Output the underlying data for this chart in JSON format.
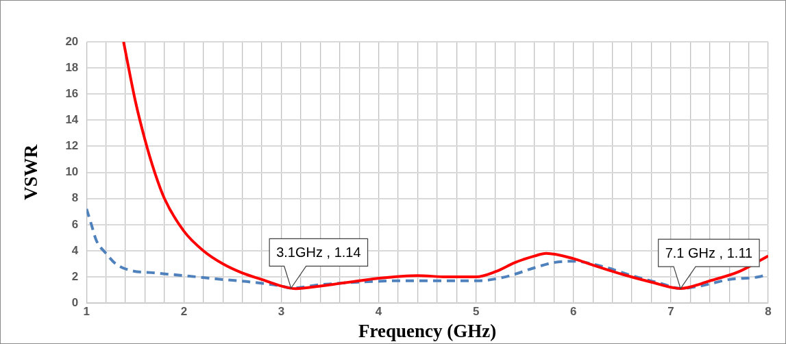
{
  "chart_data": {
    "type": "line",
    "xlabel": "Frequency (GHz)",
    "ylabel": "VSWR",
    "series": [
      {
        "color": "#ff0000",
        "line_style": "solid",
        "x": [
          1.38,
          1.5,
          1.6,
          1.7,
          1.8,
          2.0,
          2.2,
          2.4,
          2.6,
          2.8,
          3.0,
          3.15,
          3.4,
          3.6,
          3.8,
          4.0,
          4.4,
          4.7,
          5.0,
          5.2,
          5.4,
          5.6,
          5.72,
          6.0,
          6.2,
          6.5,
          6.8,
          7.1,
          7.4,
          7.7,
          8.0
        ],
        "values": [
          20,
          15.5,
          12.5,
          10,
          8,
          5.5,
          4,
          3,
          2.3,
          1.8,
          1.3,
          1.1,
          1.3,
          1.5,
          1.7,
          1.9,
          2.1,
          2.0,
          2.0,
          2.4,
          3.1,
          3.6,
          3.8,
          3.4,
          2.9,
          2.2,
          1.6,
          1.11,
          1.7,
          2.4,
          3.6
        ]
      },
      {
        "color": "#4f81bd",
        "line_style": "dashed",
        "x": [
          1.0,
          1.05,
          1.1,
          1.2,
          1.3,
          1.45,
          1.7,
          2.0,
          2.4,
          2.7,
          3.0,
          3.1,
          3.4,
          3.8,
          4.2,
          4.6,
          5.0,
          5.3,
          5.6,
          5.8,
          6.0,
          6.3,
          6.6,
          6.9,
          7.1,
          7.3,
          7.6,
          7.9,
          8.0
        ],
        "values": [
          7.2,
          6,
          4.8,
          3.8,
          3.0,
          2.5,
          2.3,
          2.1,
          1.8,
          1.6,
          1.3,
          1.14,
          1.4,
          1.6,
          1.7,
          1.7,
          1.7,
          2.0,
          2.7,
          3.1,
          3.2,
          2.8,
          2.1,
          1.5,
          1.11,
          1.3,
          1.8,
          2.0,
          2.2
        ]
      }
    ],
    "xlim": [
      1,
      8
    ],
    "xticks": [
      1,
      {
        "value": 1.2,
        "label": null
      },
      {
        "value": 1.4,
        "label": null
      },
      {
        "value": 1.6,
        "label": null
      },
      {
        "value": 1.8,
        "label": null
      },
      2,
      {
        "value": 2.2,
        "label": null
      },
      {
        "value": 2.4,
        "label": null
      },
      {
        "value": 2.6,
        "label": null
      },
      {
        "value": 2.8,
        "label": null
      },
      3,
      {
        "value": 3.2,
        "label": null
      },
      {
        "value": 3.4,
        "label": null
      },
      {
        "value": 3.6,
        "label": null
      },
      {
        "value": 3.8,
        "label": null
      },
      4,
      {
        "value": 4.2,
        "label": null
      },
      {
        "value": 4.4,
        "label": null
      },
      {
        "value": 4.6,
        "label": null
      },
      {
        "value": 4.8,
        "label": null
      },
      5,
      {
        "value": 5.2,
        "label": null
      },
      {
        "value": 5.4,
        "label": null
      },
      {
        "value": 5.6,
        "label": null
      },
      {
        "value": 5.8,
        "label": null
      },
      6,
      {
        "value": 6.2,
        "label": null
      },
      {
        "value": 6.4,
        "label": null
      },
      {
        "value": 6.6,
        "label": null
      },
      {
        "value": 6.8,
        "label": null
      },
      7,
      {
        "value": 7.2,
        "label": null
      },
      {
        "value": 7.4,
        "label": null
      },
      {
        "value": 7.6,
        "label": null
      },
      {
        "value": 7.8,
        "label": null
      },
      8
    ],
    "ylim": [
      0,
      20
    ],
    "yticks": [
      0,
      2,
      4,
      6,
      8,
      10,
      12,
      14,
      16,
      18,
      20
    ],
    "grid": true,
    "legend": false,
    "marker": "none",
    "annotations": [
      {
        "text": "3.1GHz , 1.14",
        "x": 3.1,
        "y": 1.14
      },
      {
        "text": "7.1 GHz , 1.11",
        "x": 7.1,
        "y": 1.11
      }
    ]
  }
}
